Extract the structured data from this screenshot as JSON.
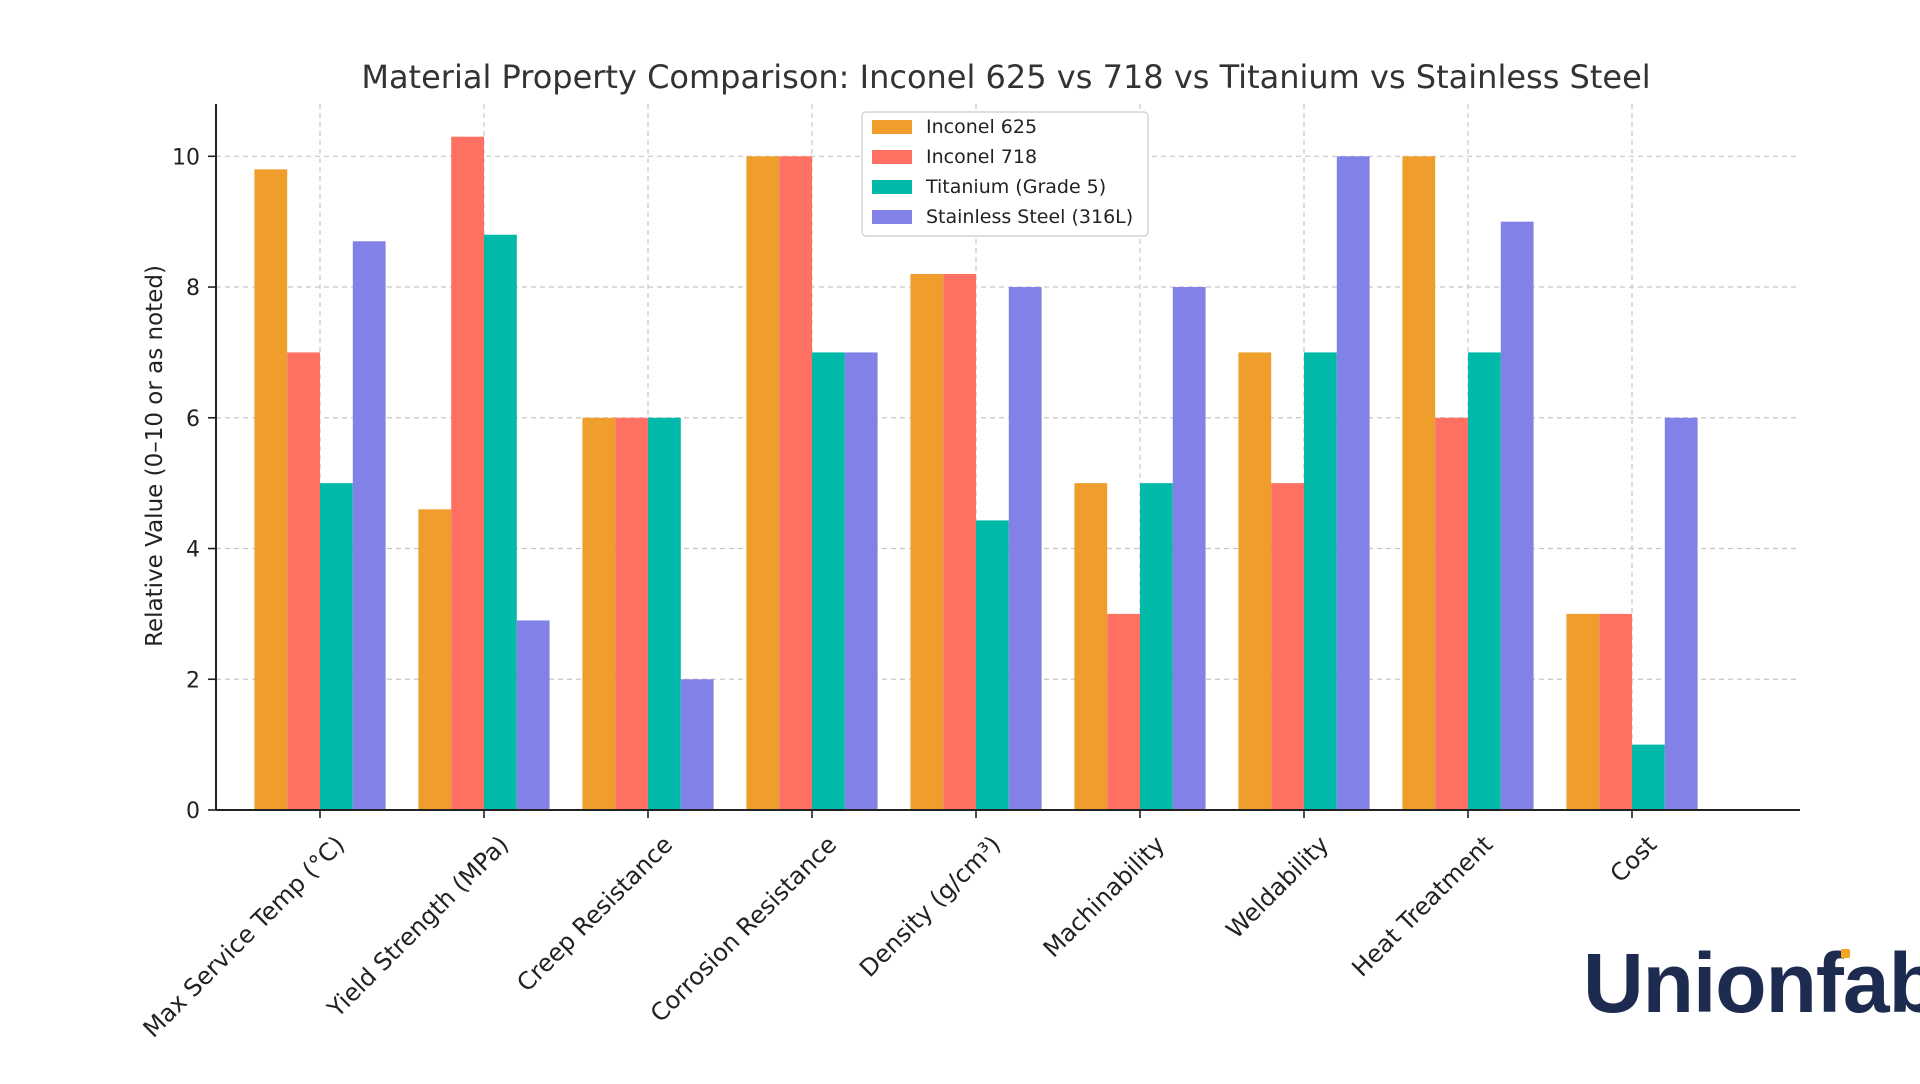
{
  "chart_data": {
    "type": "bar",
    "title": "Material Property Comparison: Inconel 625 vs 718 vs Titanium vs Stainless Steel",
    "xlabel": "",
    "ylabel": "Relative Value (0–10 or as noted)",
    "ylim": [
      0,
      10.8
    ],
    "yticks": [
      0,
      2,
      4,
      6,
      8,
      10
    ],
    "grid": true,
    "legend_position": "top-center",
    "categories": [
      "Max Service Temp (°C)",
      "Yield Strength (MPa)",
      "Creep Resistance",
      "Corrosion Resistance",
      "Density (g/cm³)",
      "Machinability",
      "Weldability",
      "Heat Treatment",
      "Cost"
    ],
    "series": [
      {
        "name": "Inconel 625",
        "color": "#f09e2b",
        "values": [
          9.8,
          4.6,
          6,
          10,
          8.2,
          5,
          7,
          10,
          3
        ]
      },
      {
        "name": "Inconel 718",
        "color": "#fd7062",
        "values": [
          7,
          10.3,
          6,
          10,
          8.2,
          3,
          5,
          6,
          3
        ]
      },
      {
        "name": "Titanium (Grade 5)",
        "color": "#00b9a9",
        "values": [
          5,
          8.8,
          6,
          7,
          4.43,
          5,
          7,
          7,
          1
        ]
      },
      {
        "name": "Stainless Steel (316L)",
        "color": "#8181e8",
        "values": [
          8.7,
          2.9,
          2,
          7,
          8,
          8,
          10,
          9,
          6
        ]
      }
    ]
  },
  "branding": {
    "logo_text": "Unionfab",
    "logo_color": "#1c2b4f",
    "logo_accent_color": "#f5a623"
  }
}
